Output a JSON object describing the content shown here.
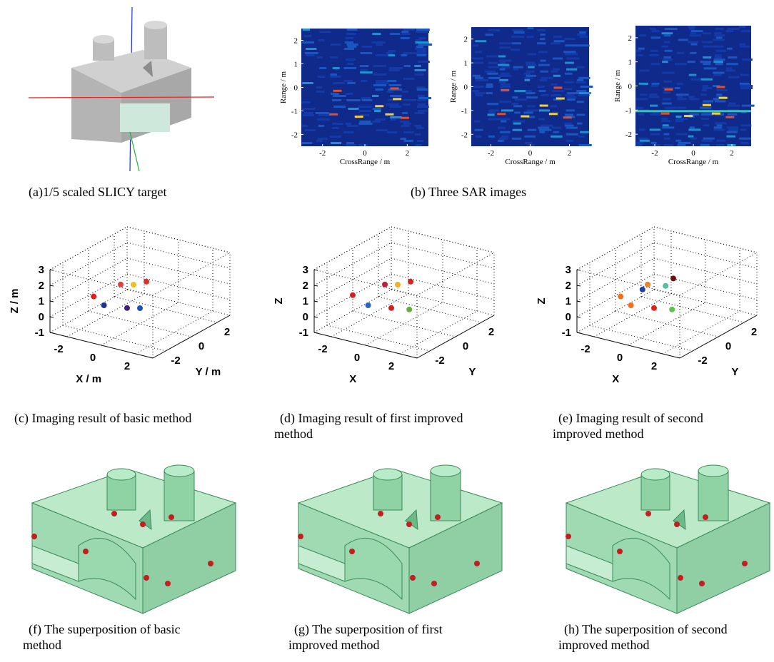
{
  "panels": [
    {
      "caption": [
        "(a)1/5 scaled SLICY target"
      ]
    },
    {
      "caption": [
        "(b) Three SAR images"
      ],
      "images": [
        {
          "ylabel": "Range / m",
          "xlabel": "CrossRange / m",
          "yticks": [
            2,
            1,
            0,
            -1,
            -2
          ],
          "xticks": [
            -2,
            0,
            2
          ]
        },
        {
          "ylabel": "Range / m",
          "xlabel": "CrossRange / m",
          "yticks": [
            2,
            1,
            0,
            -1,
            -2
          ],
          "xticks": [
            -2,
            0,
            2
          ]
        },
        {
          "ylabel": "Range / m",
          "xlabel": "CrossRange / m",
          "yticks": [
            2,
            1,
            0,
            -1,
            -2
          ],
          "xticks": [
            -2,
            0,
            2
          ]
        }
      ]
    },
    {
      "caption": [
        "(c) Imaging result of basic method"
      ],
      "plot": {
        "zlabel": "Z / m",
        "xlabel": "X / m",
        "ylabel": "Y / m",
        "zticks": [
          3,
          2,
          1,
          0,
          -1
        ],
        "xticks": [
          -2,
          0,
          2
        ],
        "yticks": [
          -2,
          0,
          2
        ]
      }
    },
    {
      "caption": [
        "(d) Imaging result of first improved",
        "method"
      ],
      "plot": {
        "zlabel": "Z",
        "xlabel": "X",
        "ylabel": "Y",
        "zticks": [
          3,
          2,
          1,
          0,
          -1
        ],
        "xticks": [
          -2,
          0,
          2
        ],
        "yticks": [
          -2,
          0,
          2
        ]
      }
    },
    {
      "caption": [
        "(e) Imaging result of second",
        "improved method"
      ],
      "plot": {
        "zlabel": "Z",
        "xlabel": "X",
        "ylabel": "Y",
        "zticks": [
          3,
          2,
          1,
          0,
          -1
        ],
        "xticks": [
          -2,
          0,
          2
        ],
        "yticks": [
          -2,
          0,
          2
        ]
      }
    },
    {
      "caption": [
        "(f) The superposition of basic",
        "method"
      ]
    },
    {
      "caption": [
        "(g) The superposition of first",
        "improved method"
      ]
    },
    {
      "caption": [
        "(h) The superposition of second",
        "improved method"
      ]
    }
  ]
}
